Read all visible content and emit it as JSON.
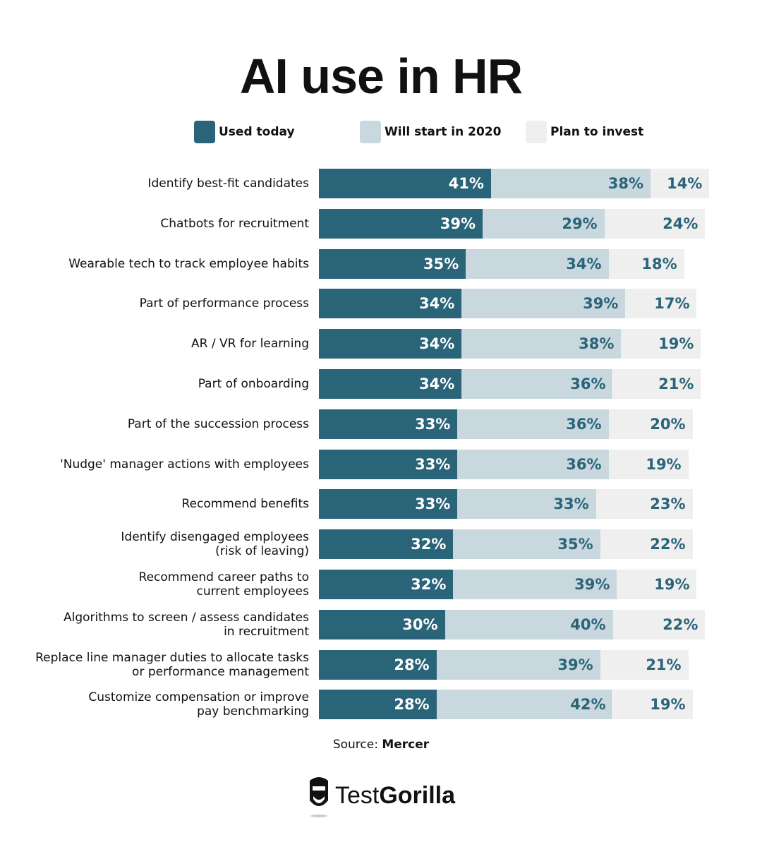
{
  "chart_data": {
    "type": "stacked-bar-horizontal",
    "title": "AI use in HR",
    "categories": [
      "Identify best-fit candidates",
      "Chatbots for recruitment",
      "Wearable tech to track employee habits",
      "Part of performance process",
      "AR / VR for learning",
      "Part of onboarding",
      "Part of the succession process",
      "'Nudge' manager actions with employees",
      "Recommend benefits",
      "Identify disengaged employees\n(risk of leaving)",
      "Recommend career paths to\ncurrent employees",
      "Algorithms to screen / assess candidates\nin recruitment",
      "Replace line manager duties to allocate tasks\nor performance management",
      "Customize compensation or improve\npay benchmarking"
    ],
    "series": [
      {
        "name": "Used today",
        "color": "#2a6478",
        "values": [
          41,
          39,
          35,
          34,
          34,
          34,
          33,
          33,
          33,
          32,
          32,
          30,
          28,
          28
        ],
        "value_labels": [
          "41%",
          "39%",
          "35%",
          "34%",
          "34%",
          "34%",
          "33%",
          "33%",
          "33%",
          "32%",
          "32%",
          "30%",
          "28%",
          "28%"
        ]
      },
      {
        "name": "Will start in 2020",
        "color": "#c9d8df",
        "values": [
          38,
          29,
          34,
          39,
          38,
          36,
          36,
          36,
          33,
          35,
          39,
          40,
          39,
          42
        ],
        "value_labels": [
          "38%",
          "29%",
          "34%",
          "39%",
          "38%",
          "36%",
          "36%",
          "36%",
          "33%",
          "35%",
          "39%",
          "40%",
          "39%",
          "42%"
        ]
      },
      {
        "name": "Plan to invest",
        "color": "#efefef",
        "values": [
          14,
          24,
          18,
          17,
          19,
          21,
          20,
          19,
          23,
          22,
          19,
          22,
          21,
          19
        ],
        "value_labels": [
          "14%",
          "24%",
          "18%",
          "17%",
          "19%",
          "21%",
          "20%",
          "19%",
          "23%",
          "22%",
          "19%",
          "22%",
          "21%",
          "19%"
        ]
      }
    ],
    "source_label": "Source:",
    "source": "Mercer"
  },
  "brand": {
    "light": "Test",
    "bold": "Gorilla"
  }
}
